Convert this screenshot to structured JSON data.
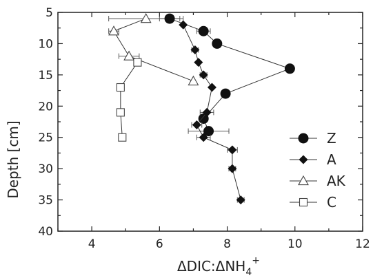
{
  "chart_data": {
    "type": "scatter",
    "title": "",
    "xlabel": "ΔDIC:ΔNH",
    "xlabel_sub": "4",
    "xlabel_sup": "+",
    "ylabel": "Depth [cm]",
    "xlim": [
      3,
      12
    ],
    "ylim": [
      5,
      40
    ],
    "y_inverted": true,
    "xticks": [
      4,
      6,
      8,
      10,
      12
    ],
    "yticks": [
      5,
      10,
      15,
      20,
      25,
      30,
      35,
      40
    ],
    "grid": false,
    "legend": "right",
    "series": [
      {
        "name": "Z",
        "marker": "circle-filled",
        "points": [
          {
            "x": 6.3,
            "y": 6,
            "xerr": 0.3
          },
          {
            "x": 7.3,
            "y": 8,
            "xerr": 0.2
          },
          {
            "x": 7.7,
            "y": 10,
            "xerr": 0.0
          },
          {
            "x": 9.85,
            "y": 14,
            "xerr": 0.0
          },
          {
            "x": 7.95,
            "y": 18,
            "xerr": 0.0
          },
          {
            "x": 7.3,
            "y": 22,
            "xerr": 0.0
          },
          {
            "x": 7.45,
            "y": 24,
            "xerr": 0.6
          }
        ]
      },
      {
        "name": "A",
        "marker": "diamond-filled",
        "points": [
          {
            "x": 6.7,
            "y": 7,
            "xerr": 0.0
          },
          {
            "x": 7.05,
            "y": 11,
            "xerr": 0.1
          },
          {
            "x": 7.15,
            "y": 13,
            "xerr": 0.0
          },
          {
            "x": 7.3,
            "y": 15,
            "xerr": 0.1
          },
          {
            "x": 7.55,
            "y": 17,
            "xerr": 0.0
          },
          {
            "x": 7.4,
            "y": 21,
            "xerr": 0.2
          },
          {
            "x": 7.1,
            "y": 23,
            "xerr": 0.15
          },
          {
            "x": 7.3,
            "y": 25,
            "xerr": 0.2
          },
          {
            "x": 8.15,
            "y": 27,
            "xerr": 0.15
          },
          {
            "x": 8.15,
            "y": 30,
            "xerr": 0.1
          },
          {
            "x": 8.4,
            "y": 35,
            "xerr": 0.1
          }
        ]
      },
      {
        "name": "AK",
        "marker": "triangle-open",
        "points": [
          {
            "x": 5.6,
            "y": 6,
            "xerr": 1.1
          },
          {
            "x": 4.65,
            "y": 8,
            "xerr": 0.15
          },
          {
            "x": 5.1,
            "y": 12,
            "xerr": 0.3
          },
          {
            "x": 7.0,
            "y": 16,
            "xerr": 0.0
          }
        ]
      },
      {
        "name": "C",
        "marker": "square-open",
        "points": [
          {
            "x": 5.35,
            "y": 13,
            "xerr": 0.1
          },
          {
            "x": 4.85,
            "y": 17,
            "xerr": 0.1
          },
          {
            "x": 4.85,
            "y": 21,
            "xerr": 0.0
          },
          {
            "x": 4.9,
            "y": 25,
            "xerr": 0.0
          }
        ]
      }
    ]
  }
}
